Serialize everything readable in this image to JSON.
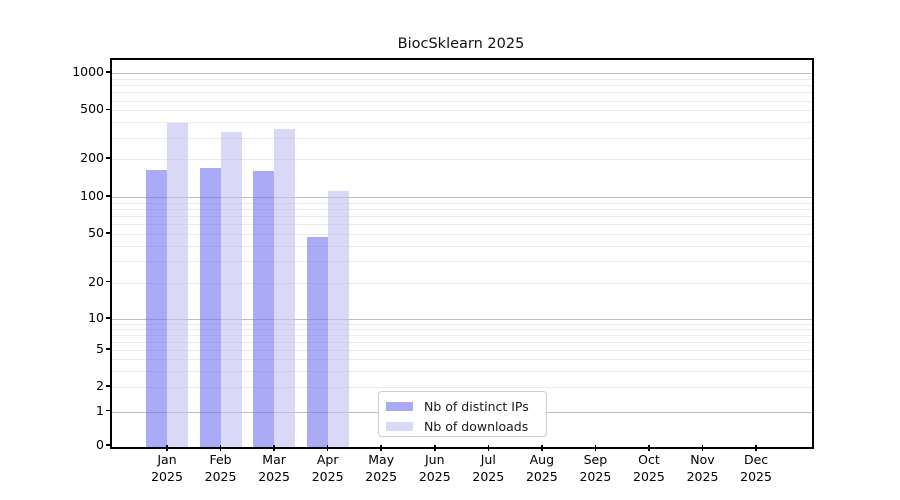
{
  "title": "BiocSklearn 2025",
  "legend": {
    "items": [
      {
        "label": "Nb of distinct IPs",
        "color": "#a9a9f5"
      },
      {
        "label": "Nb of downloads",
        "color": "#d8d8f8"
      }
    ]
  },
  "chart_data": {
    "type": "bar",
    "title": "BiocSklearn 2025",
    "categories": [
      "Jan 2025",
      "Feb 2025",
      "Mar 2025",
      "Apr 2025",
      "May 2025",
      "Jun 2025",
      "Jul 2025",
      "Aug 2025",
      "Sep 2025",
      "Oct 2025",
      "Nov 2025",
      "Dec 2025"
    ],
    "series": [
      {
        "name": "Nb of distinct IPs",
        "fill": "rgba(113,113,240,0.6)",
        "legend_color": "#a9a9f5",
        "values": [
          167,
          174,
          165,
          48,
          null,
          null,
          null,
          null,
          null,
          null,
          null,
          null
        ]
      },
      {
        "name": "Nb of downloads",
        "fill": "rgba(192,192,242,0.6)",
        "legend_color": "#d8d8f8",
        "values": [
          402,
          340,
          357,
          114,
          null,
          null,
          null,
          null,
          null,
          null,
          null,
          null
        ]
      }
    ],
    "xlabel": "",
    "ylabel": "",
    "y_scale": "symlog",
    "y_ticks": [
      0,
      1,
      2,
      5,
      10,
      20,
      50,
      100,
      200,
      500,
      1000
    ],
    "ylim": [
      0,
      1300
    ],
    "grid": "horizontal log major+minor",
    "legend_position": "lower center-right inside plot"
  }
}
